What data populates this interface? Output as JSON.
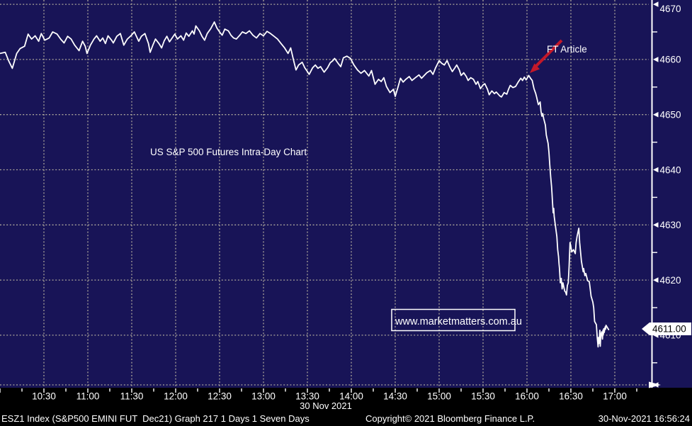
{
  "colors": {
    "background": "#181457",
    "footer_bg": "#000000",
    "grid": "#a9a399",
    "axis": "#ffffff",
    "line": "#ffffff",
    "title_green": "#63dc6e",
    "watermark_cyan": "#1fd8ea",
    "annotation_red": "#c3182a",
    "price_tag_bg": "#ffffff",
    "price_tag_text": "#000000"
  },
  "annotations": {
    "ft_article_label": "FT Article",
    "watermark_text": "www.marketmatters.com.au",
    "chart_title": "US S&P 500 Futures Intra-Day Chart"
  },
  "footer": {
    "left": "ESZ1 Index (S&P500 EMINI FUT  Dec21) Graph 217 1 Days 1 Seven Days",
    "center": "Copyright© 2021 Bloomberg Finance L.P.",
    "right": "30-Nov-2021 16:56:24"
  },
  "chart_data": {
    "type": "line",
    "title": "US S&P 500 Futures Intra-Day Chart",
    "date_label": "30 Nov 2021",
    "grid": "dotted",
    "legend_position": "none",
    "xlim_hours": [
      10.0,
      17.42
    ],
    "ylim": [
      4600,
      4670.4
    ],
    "last_price": 4611.0,
    "last_price_label": "4611.00",
    "x_ticks": {
      "labels": [
        "10:30",
        "11:00",
        "11:30",
        "12:00",
        "12:30",
        "13:00",
        "13:30",
        "14:00",
        "14:30",
        "15:00",
        "15:30",
        "16:00",
        "16:30",
        "17:00"
      ],
      "hours": [
        10.5,
        11,
        11.5,
        12,
        12.5,
        13,
        13.5,
        14,
        14.5,
        15,
        15.5,
        16,
        16.5,
        17
      ],
      "minor_step_minutes": 15
    },
    "y_ticks": {
      "labeled": [
        4670,
        4660,
        4650,
        4640,
        4630,
        4620,
        4610
      ],
      "minor": [
        4665,
        4655,
        4645,
        4635,
        4625,
        4615,
        4605
      ]
    },
    "annotation": {
      "label": "FT Article",
      "points_to_hour": 16.02,
      "points_to_price": 4657.1
    },
    "series": [
      {
        "name": "ESZ1 Index (S&P500 EMINI FUT Dec21)",
        "color": "#ffffff",
        "points": [
          [
            10.0,
            4661.1
          ],
          [
            10.06,
            4661.3
          ],
          [
            10.1,
            4659.7
          ],
          [
            10.14,
            4658.4
          ],
          [
            10.19,
            4661.1
          ],
          [
            10.23,
            4662.0
          ],
          [
            10.28,
            4662.4
          ],
          [
            10.32,
            4664.6
          ],
          [
            10.36,
            4663.7
          ],
          [
            10.4,
            4664.3
          ],
          [
            10.44,
            4663.3
          ],
          [
            10.47,
            4664.7
          ],
          [
            10.51,
            4663.5
          ],
          [
            10.56,
            4663.9
          ],
          [
            10.6,
            4665.0
          ],
          [
            10.65,
            4664.6
          ],
          [
            10.69,
            4663.7
          ],
          [
            10.73,
            4663.0
          ],
          [
            10.77,
            4664.2
          ],
          [
            10.81,
            4663.7
          ],
          [
            10.85,
            4662.6
          ],
          [
            10.9,
            4661.6
          ],
          [
            10.94,
            4663.3
          ],
          [
            10.97,
            4662.4
          ],
          [
            10.99,
            4661.1
          ],
          [
            11.03,
            4662.6
          ],
          [
            11.07,
            4663.7
          ],
          [
            11.1,
            4664.3
          ],
          [
            11.14,
            4663.3
          ],
          [
            11.17,
            4663.9
          ],
          [
            11.2,
            4662.9
          ],
          [
            11.23,
            4664.3
          ],
          [
            11.27,
            4663.5
          ],
          [
            11.29,
            4663.0
          ],
          [
            11.33,
            4664.2
          ],
          [
            11.37,
            4664.7
          ],
          [
            11.41,
            4662.6
          ],
          [
            11.45,
            4663.7
          ],
          [
            11.49,
            4664.3
          ],
          [
            11.53,
            4665.0
          ],
          [
            11.58,
            4663.3
          ],
          [
            11.61,
            4664.2
          ],
          [
            11.65,
            4664.7
          ],
          [
            11.69,
            4662.9
          ],
          [
            11.71,
            4661.3
          ],
          [
            11.74,
            4662.6
          ],
          [
            11.77,
            4663.7
          ],
          [
            11.81,
            4662.9
          ],
          [
            11.84,
            4662.1
          ],
          [
            11.87,
            4663.4
          ],
          [
            11.9,
            4664.2
          ],
          [
            11.93,
            4663.2
          ],
          [
            11.96,
            4663.9
          ],
          [
            11.99,
            4664.6
          ],
          [
            12.02,
            4663.7
          ],
          [
            12.06,
            4664.3
          ],
          [
            12.09,
            4663.5
          ],
          [
            12.12,
            4664.8
          ],
          [
            12.15,
            4664.2
          ],
          [
            12.19,
            4665.2
          ],
          [
            12.21,
            4664.6
          ],
          [
            12.23,
            4666.1
          ],
          [
            12.27,
            4665.2
          ],
          [
            12.3,
            4664.2
          ],
          [
            12.33,
            4663.5
          ],
          [
            12.36,
            4664.7
          ],
          [
            12.4,
            4665.6
          ],
          [
            12.44,
            4666.8
          ],
          [
            12.47,
            4665.7
          ],
          [
            12.5,
            4665.0
          ],
          [
            12.53,
            4664.4
          ],
          [
            12.56,
            4665.5
          ],
          [
            12.6,
            4665.2
          ],
          [
            12.63,
            4664.4
          ],
          [
            12.66,
            4663.9
          ],
          [
            12.69,
            4663.7
          ],
          [
            12.73,
            4664.4
          ],
          [
            12.76,
            4665.0
          ],
          [
            12.8,
            4664.7
          ],
          [
            12.84,
            4665.2
          ],
          [
            12.88,
            4664.4
          ],
          [
            12.92,
            4663.9
          ],
          [
            12.96,
            4664.7
          ],
          [
            13.0,
            4664.3
          ],
          [
            13.04,
            4665.1
          ],
          [
            13.08,
            4664.7
          ],
          [
            13.12,
            4664.2
          ],
          [
            13.16,
            4663.7
          ],
          [
            13.2,
            4662.9
          ],
          [
            13.24,
            4662.1
          ],
          [
            13.28,
            4661.1
          ],
          [
            13.31,
            4662.1
          ],
          [
            13.34,
            4660.0
          ],
          [
            13.37,
            4658.1
          ],
          [
            13.4,
            4659.0
          ],
          [
            13.44,
            4659.5
          ],
          [
            13.47,
            4658.5
          ],
          [
            13.5,
            4657.8
          ],
          [
            13.52,
            4657.3
          ],
          [
            13.56,
            4658.5
          ],
          [
            13.59,
            4659.0
          ],
          [
            13.62,
            4658.4
          ],
          [
            13.65,
            4658.7
          ],
          [
            13.69,
            4657.7
          ],
          [
            13.73,
            4658.5
          ],
          [
            13.76,
            4659.4
          ],
          [
            13.79,
            4659.8
          ],
          [
            13.81,
            4660.2
          ],
          [
            13.85,
            4659.3
          ],
          [
            13.88,
            4658.7
          ],
          [
            13.91,
            4660.3
          ],
          [
            13.95,
            4660.6
          ],
          [
            13.99,
            4660.2
          ],
          [
            14.03,
            4659.0
          ],
          [
            14.07,
            4658.1
          ],
          [
            14.11,
            4657.5
          ],
          [
            14.15,
            4658.0
          ],
          [
            14.2,
            4657.0
          ],
          [
            14.23,
            4658.0
          ],
          [
            14.27,
            4655.5
          ],
          [
            14.31,
            4656.4
          ],
          [
            14.34,
            4656.0
          ],
          [
            14.37,
            4656.7
          ],
          [
            14.4,
            4655.1
          ],
          [
            14.44,
            4654.0
          ],
          [
            14.48,
            4654.6
          ],
          [
            14.5,
            4653.3
          ],
          [
            14.53,
            4654.9
          ],
          [
            14.56,
            4656.6
          ],
          [
            14.59,
            4655.9
          ],
          [
            14.62,
            4656.4
          ],
          [
            14.66,
            4656.9
          ],
          [
            14.69,
            4656.2
          ],
          [
            14.73,
            4656.7
          ],
          [
            14.77,
            4657.2
          ],
          [
            14.8,
            4656.6
          ],
          [
            14.83,
            4657.1
          ],
          [
            14.86,
            4657.6
          ],
          [
            14.9,
            4658.0
          ],
          [
            14.93,
            4657.3
          ],
          [
            14.96,
            4658.5
          ],
          [
            15.0,
            4659.8
          ],
          [
            15.03,
            4659.3
          ],
          [
            15.06,
            4659.0
          ],
          [
            15.09,
            4659.8
          ],
          [
            15.12,
            4658.7
          ],
          [
            15.15,
            4657.8
          ],
          [
            15.18,
            4658.5
          ],
          [
            15.2,
            4659.0
          ],
          [
            15.23,
            4658.1
          ],
          [
            15.25,
            4657.1
          ],
          [
            15.28,
            4657.6
          ],
          [
            15.31,
            4656.9
          ],
          [
            15.33,
            4656.2
          ],
          [
            15.36,
            4656.7
          ],
          [
            15.39,
            4656.4
          ],
          [
            15.42,
            4655.5
          ],
          [
            15.44,
            4656.0
          ],
          [
            15.47,
            4654.7
          ],
          [
            15.5,
            4655.4
          ],
          [
            15.52,
            4655.6
          ],
          [
            15.55,
            4654.6
          ],
          [
            15.57,
            4653.6
          ],
          [
            15.6,
            4654.3
          ],
          [
            15.63,
            4653.8
          ],
          [
            15.65,
            4654.1
          ],
          [
            15.69,
            4653.4
          ],
          [
            15.71,
            4653.2
          ],
          [
            15.74,
            4654.0
          ],
          [
            15.77,
            4653.7
          ],
          [
            15.79,
            4654.6
          ],
          [
            15.81,
            4655.3
          ],
          [
            15.84,
            4654.9
          ],
          [
            15.87,
            4655.1
          ],
          [
            15.9,
            4655.9
          ],
          [
            15.93,
            4656.6
          ],
          [
            15.95,
            4656.2
          ],
          [
            15.97,
            4656.8
          ],
          [
            15.99,
            4656.3
          ],
          [
            16.02,
            4657.1
          ],
          [
            16.04,
            4656.6
          ],
          [
            16.06,
            4656.2
          ],
          [
            16.07,
            4655.4
          ],
          [
            16.08,
            4654.7
          ],
          [
            16.1,
            4653.8
          ],
          [
            16.11,
            4653.2
          ],
          [
            16.13,
            4651.8
          ],
          [
            16.15,
            4652.3
          ],
          [
            16.16,
            4650.6
          ],
          [
            16.17,
            4649.7
          ],
          [
            16.18,
            4650.2
          ],
          [
            16.19,
            4649.3
          ],
          [
            16.21,
            4648.1
          ],
          [
            16.22,
            4646.3
          ],
          [
            16.24,
            4644.8
          ],
          [
            16.25,
            4643.2
          ],
          [
            16.26,
            4640.9
          ],
          [
            16.27,
            4638.7
          ],
          [
            16.28,
            4637.0
          ],
          [
            16.285,
            4635.8
          ],
          [
            16.29,
            4634.2
          ],
          [
            16.298,
            4632.2
          ],
          [
            16.305,
            4633.0
          ],
          [
            16.31,
            4631.6
          ],
          [
            16.32,
            4630.3
          ],
          [
            16.34,
            4627.9
          ],
          [
            16.35,
            4625.5
          ],
          [
            16.36,
            4624.2
          ],
          [
            16.365,
            4622.9
          ],
          [
            16.37,
            4622.1
          ],
          [
            16.375,
            4620.8
          ],
          [
            16.38,
            4619.5
          ],
          [
            16.39,
            4620.3
          ],
          [
            16.4,
            4618.4
          ],
          [
            16.41,
            4619.5
          ],
          [
            16.42,
            4618.7
          ],
          [
            16.43,
            4618.0
          ],
          [
            16.44,
            4617.8
          ],
          [
            16.45,
            4617.3
          ],
          [
            16.46,
            4619.0
          ],
          [
            16.47,
            4619.5
          ],
          [
            16.48,
            4622.5
          ],
          [
            16.49,
            4626.8
          ],
          [
            16.5,
            4626.1
          ],
          [
            16.51,
            4625.1
          ],
          [
            16.53,
            4625.5
          ],
          [
            16.55,
            4624.8
          ],
          [
            16.56,
            4626.8
          ],
          [
            16.57,
            4627.9
          ],
          [
            16.59,
            4629.4
          ],
          [
            16.6,
            4626.8
          ],
          [
            16.62,
            4623.4
          ],
          [
            16.64,
            4621.5
          ],
          [
            16.645,
            4622.1
          ],
          [
            16.66,
            4620.8
          ],
          [
            16.67,
            4621.2
          ],
          [
            16.69,
            4619.9
          ],
          [
            16.71,
            4619.7
          ],
          [
            16.72,
            4618.4
          ],
          [
            16.73,
            4617.1
          ],
          [
            16.75,
            4616.0
          ],
          [
            16.76,
            4615.0
          ],
          [
            16.77,
            4612.5
          ],
          [
            16.79,
            4611.9
          ],
          [
            16.8,
            4609.6
          ],
          [
            16.81,
            4607.9
          ],
          [
            16.815,
            4609.6
          ],
          [
            16.82,
            4608.5
          ],
          [
            16.83,
            4610.9
          ],
          [
            16.835,
            4608.0
          ],
          [
            16.84,
            4609.9
          ],
          [
            16.85,
            4610.6
          ],
          [
            16.86,
            4609.3
          ],
          [
            16.865,
            4610.9
          ],
          [
            16.87,
            4610.2
          ],
          [
            16.875,
            4611.2
          ],
          [
            16.88,
            4610.5
          ],
          [
            16.89,
            4611.5
          ],
          [
            16.895,
            4611.1
          ],
          [
            16.9,
            4611.8
          ],
          [
            16.93,
            4611.0
          ]
        ]
      }
    ]
  }
}
